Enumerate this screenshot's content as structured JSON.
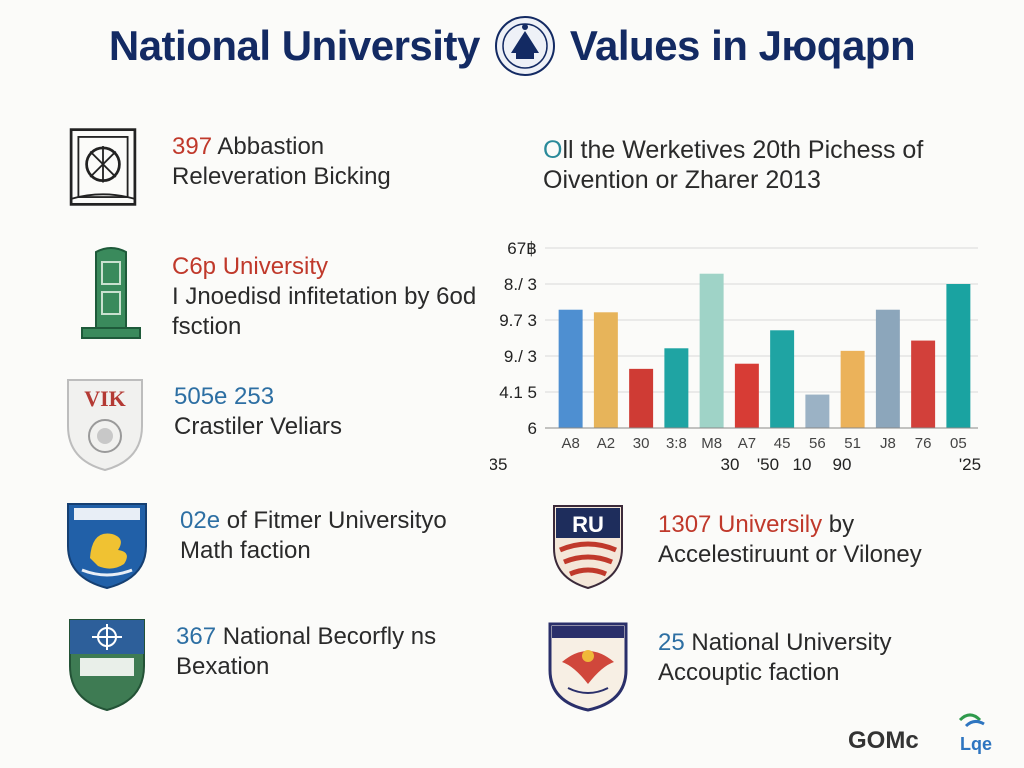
{
  "header": {
    "title_left": "National University",
    "title_right": "Values in Jюqapn",
    "seal_icon": "university-seal-icon"
  },
  "colors": {
    "title": "#132a63",
    "accent_red": "#c0392b",
    "accent_blue": "#2d6fa3"
  },
  "items": [
    {
      "icon": "building-gate-icon",
      "highlight": "397",
      "heading_rest": " Abbastion",
      "body": "Releveration Bicking"
    },
    {
      "icon": "obelisk-monument-icon",
      "highlight": "C6p University",
      "heading_rest": "",
      "body": "I Jnoedisd infitetation by 6od fsction"
    },
    {
      "icon": "vik-shield-icon",
      "highlight": "505e 253",
      "heading_rest": "",
      "body": "Crastiler Veliars"
    },
    {
      "icon": "dragon-crest-icon",
      "highlight": "02e",
      "heading_rest": " of Fitmer Universityo",
      "body": "Math faction"
    },
    {
      "icon": "crosshair-shield-icon",
      "highlight": "367",
      "heading_rest": " National Becorfly ns",
      "body": "Bexation"
    },
    {
      "icon": "ru-shield-icon",
      "highlight": "1307 Universily",
      "heading_rest": " by",
      "body": "Accelestiruunt or Viloney"
    },
    {
      "icon": "eagle-crest-icon",
      "highlight": "25",
      "heading_rest": " National University",
      "body": "Accouptic faction"
    }
  ],
  "chart_data": {
    "type": "bar",
    "title": "Oll the Werketives 20th Pichess of Oivention or Zharer 2013",
    "title_lead": "O",
    "title_rest": "ll the Werketives 20th Pichess of Oivention or Zharer 2013",
    "ytick_labels": [
      "67฿",
      "8./ 3",
      "9.7 3",
      "9./ 3",
      "4.1 5",
      "6"
    ],
    "xtick_labels": [
      "A8",
      "A2",
      "30",
      "3:8",
      "M8",
      "A7",
      "45",
      "56",
      "51",
      "J8",
      "76",
      "05"
    ],
    "xtick_labels_lower": [
      "35",
      "30",
      "'50",
      "10",
      "90",
      "'25"
    ],
    "values": [
      46,
      45,
      23,
      31,
      60,
      25,
      38,
      13,
      30,
      46,
      34,
      56
    ],
    "colors": [
      "#4e8fd1",
      "#e7b45a",
      "#cf3b34",
      "#1fa4a3",
      "#9fd3c7",
      "#d73c35",
      "#1fa4a3",
      "#9bb2c5",
      "#ebb25a",
      "#8ca6bb",
      "#d2403a",
      "#1aa3a1"
    ],
    "ylim": [
      0,
      70
    ],
    "grid": true
  },
  "footer": {
    "logo_text": "GOMc",
    "logo_sub": "Lqe"
  }
}
